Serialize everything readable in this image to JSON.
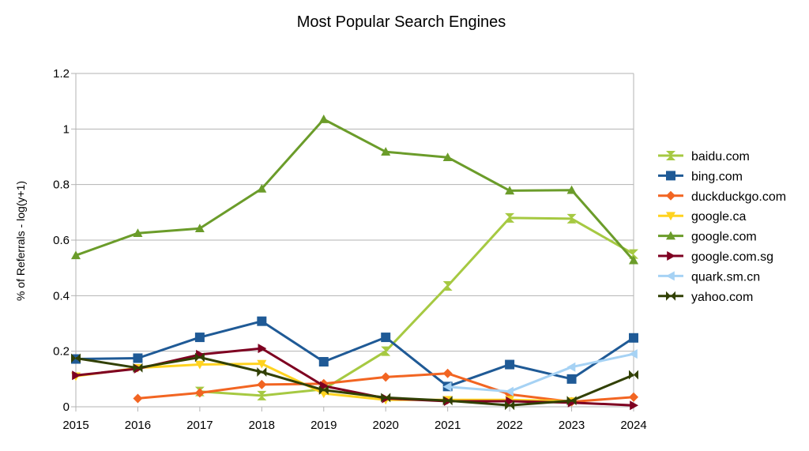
{
  "chart_data": {
    "type": "line",
    "title": "Most Popular Search Engines",
    "xlabel": "",
    "ylabel": "% of Referrals - log(y+1)",
    "x": [
      "2015",
      "2016",
      "2017",
      "2018",
      "2019",
      "2020",
      "2021",
      "2022",
      "2023",
      "2024"
    ],
    "ylim": [
      0,
      1.2
    ],
    "yticks": [
      0,
      0.2,
      0.4,
      0.6,
      0.8,
      1,
      1.2
    ],
    "ytick_labels": [
      "0",
      "0.2",
      "0.4",
      "0.6",
      "0.8",
      "1",
      "1.2"
    ],
    "grid": true,
    "legend_position": "right",
    "series": [
      {
        "name": "baidu.com",
        "color": "#a6c942",
        "marker": "hourglass",
        "values": [
          null,
          null,
          0.055,
          0.04,
          0.063,
          0.2,
          0.435,
          0.68,
          0.677,
          0.55
        ]
      },
      {
        "name": "bing.com",
        "color": "#1f5a96",
        "marker": "square",
        "values": [
          0.172,
          0.175,
          0.25,
          0.308,
          0.162,
          0.25,
          0.073,
          0.152,
          0.1,
          0.248
        ]
      },
      {
        "name": "duckduckgo.com",
        "color": "#f26522",
        "marker": "diamond",
        "values": [
          null,
          0.03,
          0.05,
          0.08,
          0.083,
          0.107,
          0.12,
          0.045,
          0.018,
          0.035
        ]
      },
      {
        "name": "google.ca",
        "color": "#ffd320",
        "marker": "triangle-down",
        "values": [
          0.11,
          0.14,
          0.152,
          0.155,
          0.048,
          0.025,
          0.025,
          0.025,
          0.02,
          null
        ]
      },
      {
        "name": "google.com",
        "color": "#6b9c2a",
        "marker": "triangle-up",
        "values": [
          0.545,
          0.625,
          0.642,
          0.785,
          1.035,
          0.918,
          0.898,
          0.778,
          0.78,
          0.527
        ]
      },
      {
        "name": "google.com.sg",
        "color": "#7e0021",
        "marker": "triangle-right",
        "values": [
          0.113,
          0.137,
          0.188,
          0.21,
          0.075,
          0.03,
          0.02,
          0.02,
          0.015,
          0.005
        ]
      },
      {
        "name": "quark.sm.cn",
        "color": "#a6d2f4",
        "marker": "triangle-left",
        "values": [
          null,
          null,
          null,
          null,
          null,
          null,
          0.072,
          0.055,
          0.143,
          0.19
        ]
      },
      {
        "name": "yahoo.com",
        "color": "#314004",
        "marker": "bowtie",
        "values": [
          0.175,
          0.14,
          0.178,
          0.125,
          0.06,
          0.033,
          0.022,
          0.005,
          0.022,
          0.115
        ]
      }
    ]
  }
}
